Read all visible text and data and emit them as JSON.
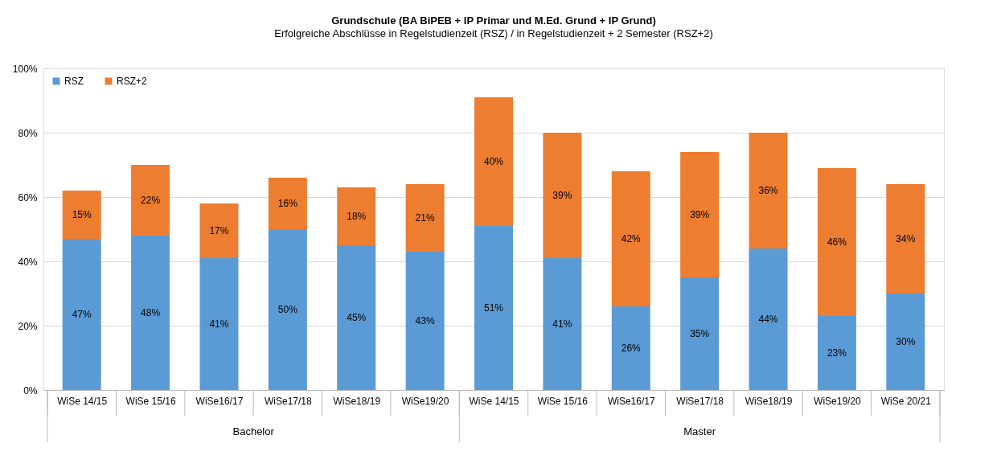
{
  "chart_data": {
    "type": "bar",
    "title": "Grundschule (BA BiPEB + IP Primar und M.Ed. Grund + IP Grund)",
    "subtitle": "Erfolgreiche Abschlüsse in Regelstudienzeit (RSZ) / in Regelstudienzeit + 2 Semester (RSZ+2)",
    "categories": [
      "WiSe 14/15",
      "WiSe 15/16",
      "WiSe16/17",
      "WiSe17/18",
      "WiSe18/19",
      "WiSe19/20",
      "WiSe 14/15",
      "WiSe 15/16",
      "WiSe16/17",
      "WiSe17/18",
      "WiSe18/19",
      "WiSe19/20",
      "WiSe 20/21"
    ],
    "stacked": true,
    "series": [
      {
        "name": "RSZ",
        "color": "#5b9bd5",
        "values": [
          47,
          48,
          41,
          50,
          45,
          43,
          51,
          41,
          26,
          35,
          44,
          23,
          30
        ],
        "value_labels": [
          "47%",
          "48%",
          "41%",
          "50%",
          "45%",
          "43%",
          "51%",
          "41%",
          "26%",
          "35%",
          "44%",
          "23%",
          "30%"
        ]
      },
      {
        "name": "RSZ+2",
        "color": "#ed7d31",
        "values": [
          15,
          22,
          17,
          16,
          18,
          21,
          40,
          39,
          42,
          39,
          36,
          46,
          34
        ],
        "value_labels": [
          "15%",
          "22%",
          "17%",
          "16%",
          "18%",
          "21%",
          "40%",
          "39%",
          "42%",
          "39%",
          "36%",
          "46%",
          "34%"
        ]
      }
    ],
    "ylim": [
      0,
      100
    ],
    "yticks": [
      {
        "value": 0,
        "label": "0%"
      },
      {
        "value": 20,
        "label": "20%"
      },
      {
        "value": 40,
        "label": "40%"
      },
      {
        "value": 60,
        "label": "60%"
      },
      {
        "value": 80,
        "label": "80%"
      },
      {
        "value": 100,
        "label": "100%"
      }
    ],
    "grid": "y",
    "legend": "top left",
    "annotations": [
      "Bachelor",
      "Master"
    ]
  }
}
